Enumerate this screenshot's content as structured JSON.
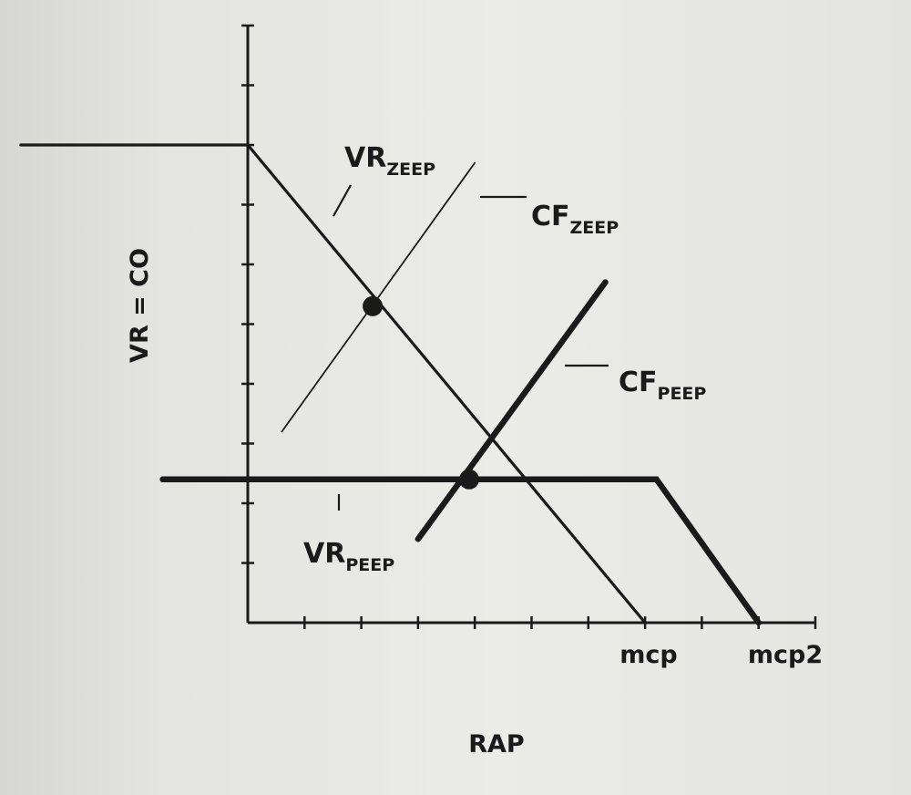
{
  "chart_data": {
    "type": "line",
    "xlabel": "RAP",
    "ylabel": "VR = CO",
    "x_tick_labels": [
      {
        "x": 7,
        "text": "mcp"
      },
      {
        "x": 9,
        "text": "mcp2"
      }
    ],
    "xlim": [
      0,
      10
    ],
    "ylim": [
      0,
      10
    ],
    "series": [
      {
        "name": "VR_ZEEP",
        "main": "VR",
        "sub": "ZEEP",
        "weight": "medium",
        "points": [
          [
            -4,
            8
          ],
          [
            0,
            8
          ],
          [
            7,
            0
          ]
        ]
      },
      {
        "name": "CF_ZEEP",
        "main": "CF",
        "sub": "ZEEP",
        "weight": "thin",
        "points": [
          [
            0.6,
            3.2
          ],
          [
            4,
            7.7
          ]
        ]
      },
      {
        "name": "CF_PEEP",
        "main": "CF",
        "sub": "PEEP",
        "weight": "thick",
        "points": [
          [
            3,
            1.4
          ],
          [
            6.3,
            5.7
          ]
        ]
      },
      {
        "name": "VR_PEEP",
        "main": "VR",
        "sub": "PEEP",
        "weight": "thick",
        "points": [
          [
            -1.5,
            2.4
          ],
          [
            7.2,
            2.4
          ],
          [
            9,
            0
          ]
        ]
      }
    ],
    "intersections": [
      {
        "x": 2.2,
        "y": 5.3
      },
      {
        "x": 3.9,
        "y": 2.4
      }
    ]
  }
}
